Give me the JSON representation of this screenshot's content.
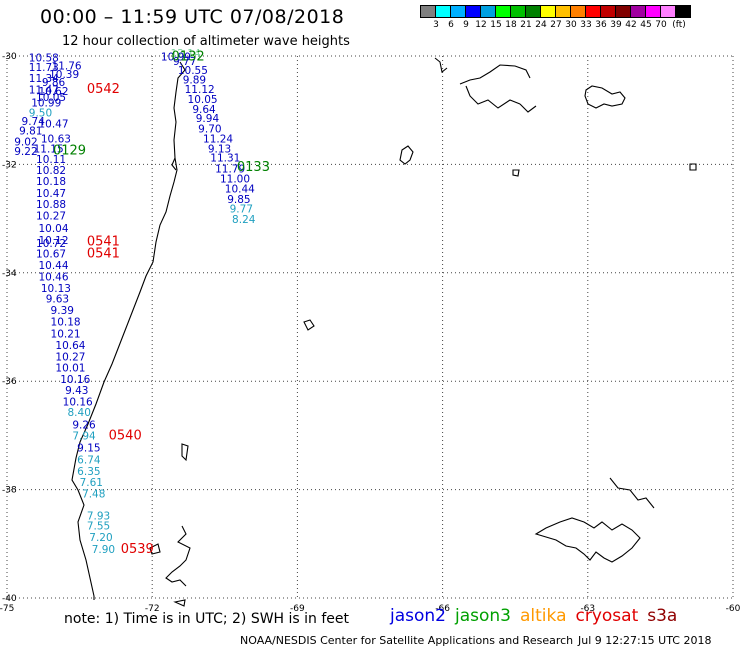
{
  "header": {
    "title": "00:00 – 11:59 UTC 07/08/2018",
    "subtitle": "12 hour collection of altimeter wave heights"
  },
  "legend": {
    "colors": [
      "#7f7f7f",
      "#00ffff",
      "#00b0ff",
      "#0000ff",
      "#00a0e0",
      "#00ff00",
      "#00c000",
      "#008000",
      "#ffff00",
      "#ffc000",
      "#ff8000",
      "#ff0000",
      "#c00000",
      "#800000",
      "#a000a0",
      "#ff00ff",
      "#ff80ff",
      "#000000"
    ],
    "labels": [
      "3",
      "6",
      "9",
      "12",
      "15",
      "18",
      "21",
      "24",
      "27",
      "30",
      "33",
      "36",
      "39",
      "42",
      "45",
      "70",
      "(ft)"
    ]
  },
  "map": {
    "lat_ticks": [
      "-30",
      "-32",
      "-34",
      "-36",
      "-38",
      "-40"
    ],
    "lon_ticks": [
      "-75",
      "-72",
      "-69",
      "-66",
      "-63",
      "-60"
    ],
    "swh": [
      {
        "lon": -71.62,
        "lat": -30.02,
        "v": "12.14",
        "c": "#7fd4a0"
      },
      {
        "lon": -71.82,
        "lat": -30.08,
        "v": "10.99",
        "c": "#0000c0"
      },
      {
        "lon": -71.57,
        "lat": -30.17,
        "v": "9.77",
        "c": "#0000c0"
      },
      {
        "lon": -74.55,
        "lat": -30.1,
        "v": "10.58",
        "c": "#0000c0"
      },
      {
        "lon": -71.47,
        "lat": -30.33,
        "v": "10.55",
        "c": "#0000c0"
      },
      {
        "lon": -74.55,
        "lat": -30.28,
        "v": "11.73",
        "c": "#0000c0"
      },
      {
        "lon": -74.08,
        "lat": -30.25,
        "v": "11.76",
        "c": "#0000c0"
      },
      {
        "lon": -74.13,
        "lat": -30.41,
        "v": "10.39",
        "c": "#0000c0"
      },
      {
        "lon": -71.37,
        "lat": -30.51,
        "v": "9.89",
        "c": "#0000c0"
      },
      {
        "lon": -74.55,
        "lat": -30.48,
        "v": "11.34",
        "c": "#0000c0"
      },
      {
        "lon": -74.28,
        "lat": -30.55,
        "v": "9.86",
        "c": "#0000c0"
      },
      {
        "lon": -71.33,
        "lat": -30.68,
        "v": "11.12",
        "c": "#0000c0"
      },
      {
        "lon": -74.55,
        "lat": -30.69,
        "v": "11.47",
        "c": "#0000c0"
      },
      {
        "lon": -74.35,
        "lat": -30.72,
        "v": "10.62",
        "c": "#0000c0"
      },
      {
        "lon": -74.4,
        "lat": -30.83,
        "v": "10.05",
        "c": "#0000c0"
      },
      {
        "lon": -71.27,
        "lat": -30.87,
        "v": "10.05",
        "c": "#0000c0"
      },
      {
        "lon": -74.5,
        "lat": -30.93,
        "v": "10.99",
        "c": "#0000c0"
      },
      {
        "lon": -71.17,
        "lat": -31.05,
        "v": "9.64",
        "c": "#0000c0"
      },
      {
        "lon": -74.55,
        "lat": -31.12,
        "v": "9.50",
        "c": "#20a0c0"
      },
      {
        "lon": -71.1,
        "lat": -31.22,
        "v": "9.94",
        "c": "#0000c0"
      },
      {
        "lon": -74.7,
        "lat": -31.27,
        "v": "9.74",
        "c": "#0000c0"
      },
      {
        "lon": -74.35,
        "lat": -31.32,
        "v": "10.47",
        "c": "#0000c0"
      },
      {
        "lon": -71.05,
        "lat": -31.41,
        "v": "9.70",
        "c": "#0000c0"
      },
      {
        "lon": -74.75,
        "lat": -31.45,
        "v": "9.81",
        "c": "#0000c0"
      },
      {
        "lon": -74.3,
        "lat": -31.6,
        "v": "10.63",
        "c": "#0000c0"
      },
      {
        "lon": -70.95,
        "lat": -31.6,
        "v": "11.24",
        "c": "#0000c0"
      },
      {
        "lon": -74.85,
        "lat": -31.65,
        "v": "9.02",
        "c": "#0000c0"
      },
      {
        "lon": -74.45,
        "lat": -31.78,
        "v": "11.15",
        "c": "#0000c0"
      },
      {
        "lon": -70.85,
        "lat": -31.78,
        "v": "9.13",
        "c": "#0000c0"
      },
      {
        "lon": -74.85,
        "lat": -31.83,
        "v": "9.22",
        "c": "#0000c0"
      },
      {
        "lon": -74.4,
        "lat": -31.97,
        "v": "10.11",
        "c": "#0000c0"
      },
      {
        "lon": -70.8,
        "lat": -31.95,
        "v": "11.31",
        "c": "#0000c0"
      },
      {
        "lon": -70.7,
        "lat": -32.15,
        "v": "11.79",
        "c": "#0000c0"
      },
      {
        "lon": -74.4,
        "lat": -32.18,
        "v": "10.82",
        "c": "#0000c0"
      },
      {
        "lon": -70.6,
        "lat": -32.33,
        "v": "11.00",
        "c": "#0000c0"
      },
      {
        "lon": -74.4,
        "lat": -32.38,
        "v": "10.18",
        "c": "#0000c0"
      },
      {
        "lon": -70.5,
        "lat": -32.52,
        "v": "10.44",
        "c": "#0000c0"
      },
      {
        "lon": -74.4,
        "lat": -32.6,
        "v": "10.47",
        "c": "#0000c0"
      },
      {
        "lon": -70.45,
        "lat": -32.71,
        "v": "9.85",
        "c": "#0000c0"
      },
      {
        "lon": -74.4,
        "lat": -32.8,
        "v": "10.88",
        "c": "#0000c0"
      },
      {
        "lon": -70.4,
        "lat": -32.89,
        "v": "9.77",
        "c": "#20a0c0"
      },
      {
        "lon": -74.4,
        "lat": -33.02,
        "v": "10.27",
        "c": "#0000c0"
      },
      {
        "lon": -70.35,
        "lat": -33.08,
        "v": "8.24",
        "c": "#20a0c0"
      },
      {
        "lon": -74.35,
        "lat": -33.25,
        "v": "10.04",
        "c": "#0000c0"
      },
      {
        "lon": -74.35,
        "lat": -33.47,
        "v": "10.12",
        "c": "#0000c0"
      },
      {
        "lon": -74.4,
        "lat": -33.52,
        "v": "10.72",
        "c": "#0000c0"
      },
      {
        "lon": -74.4,
        "lat": -33.72,
        "v": "10.67",
        "c": "#0000c0"
      },
      {
        "lon": -74.35,
        "lat": -33.93,
        "v": "10.44",
        "c": "#0000c0"
      },
      {
        "lon": -74.35,
        "lat": -34.14,
        "v": "10.46",
        "c": "#0000c0"
      },
      {
        "lon": -74.3,
        "lat": -34.35,
        "v": "10.13",
        "c": "#0000c0"
      },
      {
        "lon": -74.2,
        "lat": -34.55,
        "v": "9.63",
        "c": "#0000c0"
      },
      {
        "lon": -74.1,
        "lat": -34.76,
        "v": "9.39",
        "c": "#0000c0"
      },
      {
        "lon": -74.1,
        "lat": -34.97,
        "v": "10.18",
        "c": "#0000c0"
      },
      {
        "lon": -74.1,
        "lat": -35.19,
        "v": "10.21",
        "c": "#0000c0"
      },
      {
        "lon": -74.0,
        "lat": -35.41,
        "v": "10.64",
        "c": "#0000c0"
      },
      {
        "lon": -74.0,
        "lat": -35.62,
        "v": "10.27",
        "c": "#0000c0"
      },
      {
        "lon": -74.0,
        "lat": -35.82,
        "v": "10.01",
        "c": "#0000c0"
      },
      {
        "lon": -73.9,
        "lat": -36.03,
        "v": "10.16",
        "c": "#0000c0"
      },
      {
        "lon": -73.8,
        "lat": -36.24,
        "v": "9.43",
        "c": "#0000c0"
      },
      {
        "lon": -73.85,
        "lat": -36.45,
        "v": "10.16",
        "c": "#0000c0"
      },
      {
        "lon": -73.75,
        "lat": -36.64,
        "v": "8.40",
        "c": "#20a0c0"
      },
      {
        "lon": -73.65,
        "lat": -36.87,
        "v": "9.26",
        "c": "#0000c0"
      },
      {
        "lon": -73.65,
        "lat": -37.08,
        "v": "7.94",
        "c": "#20a0c0"
      },
      {
        "lon": -73.55,
        "lat": -37.3,
        "v": "9.15",
        "c": "#0000c0"
      },
      {
        "lon": -73.55,
        "lat": -37.52,
        "v": "6.74",
        "c": "#20a0c0"
      },
      {
        "lon": -73.55,
        "lat": -37.73,
        "v": "6.35",
        "c": "#20a0c0"
      },
      {
        "lon": -73.5,
        "lat": -37.93,
        "v": "7.61",
        "c": "#20a0c0"
      },
      {
        "lon": -73.45,
        "lat": -38.15,
        "v": "7.48",
        "c": "#20a0c0"
      },
      {
        "lon": -73.35,
        "lat": -38.55,
        "v": "7.93",
        "c": "#20a0c0"
      },
      {
        "lon": -73.35,
        "lat": -38.74,
        "v": "7.55",
        "c": "#20a0c0"
      },
      {
        "lon": -73.3,
        "lat": -38.95,
        "v": "7.20",
        "c": "#20a0c0"
      },
      {
        "lon": -73.25,
        "lat": -39.17,
        "v": "7.90",
        "c": "#20a0c0"
      }
    ],
    "times": [
      {
        "lon": -71.6,
        "lat": -30.08,
        "v": "0132",
        "c": "#008000"
      },
      {
        "lon": -73.35,
        "lat": -30.68,
        "v": "0542",
        "c": "#e00000"
      },
      {
        "lon": -74.05,
        "lat": -31.82,
        "v": "0129",
        "c": "#008000"
      },
      {
        "lon": -70.25,
        "lat": -32.12,
        "v": "0133",
        "c": "#008000"
      },
      {
        "lon": -73.35,
        "lat": -33.5,
        "v": "0541",
        "c": "#e00000"
      },
      {
        "lon": -73.35,
        "lat": -33.72,
        "v": "0541",
        "c": "#e00000"
      },
      {
        "lon": -72.9,
        "lat": -37.08,
        "v": "0540",
        "c": "#e00000"
      },
      {
        "lon": -72.65,
        "lat": -39.17,
        "v": "0539",
        "c": "#e00000"
      }
    ]
  },
  "footer": {
    "note": "note:  1) Time is in UTC;  2) SWH is in feet",
    "satellites": [
      {
        "name": "jason2",
        "color": "#0000e0"
      },
      {
        "name": "jason3",
        "color": "#00a000"
      },
      {
        "name": "altika",
        "color": "#ff9900"
      },
      {
        "name": "cryosat",
        "color": "#e00000"
      },
      {
        "name": "s3a",
        "color": "#900000"
      }
    ],
    "credit": "NOAA/NESDIS Center for Satellite Applications and Research",
    "timestamp": "Jul  9 12:27:15 UTC 2018"
  }
}
